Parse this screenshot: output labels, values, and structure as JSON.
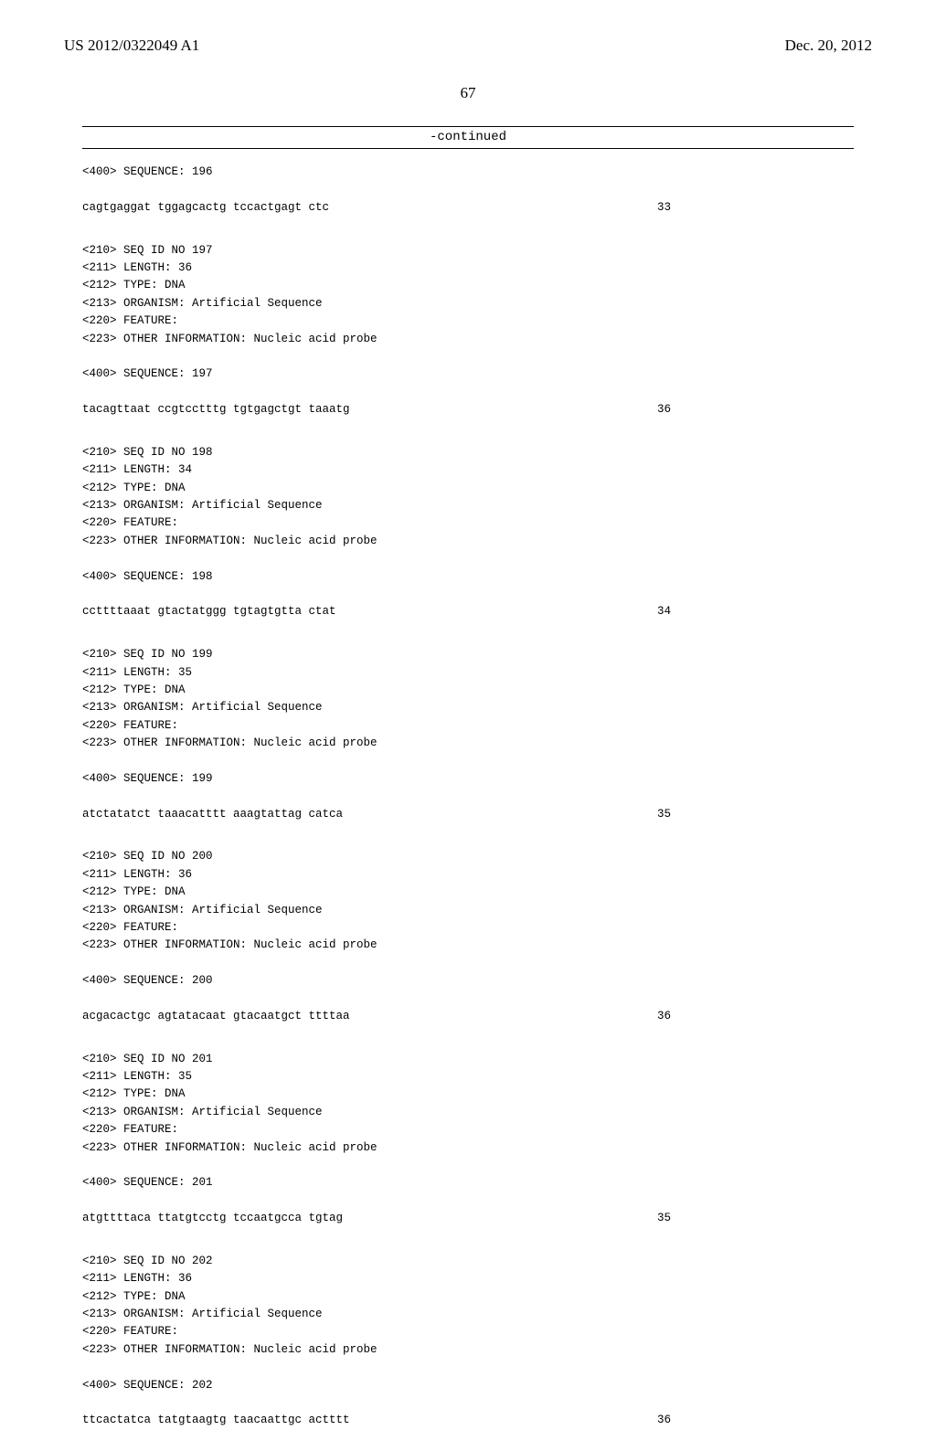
{
  "header": {
    "left": "US 2012/0322049 A1",
    "right": "Dec. 20, 2012"
  },
  "page_number": "67",
  "continued_label": "-continued",
  "entries": [
    {
      "pre_lines": [
        "<400> SEQUENCE: 196"
      ],
      "seq": "cagtgaggat tggagcactg tccactgagt ctc",
      "len": "33"
    },
    {
      "pre_lines": [
        "<210> SEQ ID NO 197",
        "<211> LENGTH: 36",
        "<212> TYPE: DNA",
        "<213> ORGANISM: Artificial Sequence",
        "<220> FEATURE:",
        "<223> OTHER INFORMATION: Nucleic acid probe",
        "",
        "<400> SEQUENCE: 197"
      ],
      "seq": "tacagttaat ccgtcctttg tgtgagctgt taaatg",
      "len": "36"
    },
    {
      "pre_lines": [
        "<210> SEQ ID NO 198",
        "<211> LENGTH: 34",
        "<212> TYPE: DNA",
        "<213> ORGANISM: Artificial Sequence",
        "<220> FEATURE:",
        "<223> OTHER INFORMATION: Nucleic acid probe",
        "",
        "<400> SEQUENCE: 198"
      ],
      "seq": "ccttttaaat gtactatggg tgtagtgtta ctat",
      "len": "34"
    },
    {
      "pre_lines": [
        "<210> SEQ ID NO 199",
        "<211> LENGTH: 35",
        "<212> TYPE: DNA",
        "<213> ORGANISM: Artificial Sequence",
        "<220> FEATURE:",
        "<223> OTHER INFORMATION: Nucleic acid probe",
        "",
        "<400> SEQUENCE: 199"
      ],
      "seq": "atctatatct taaacatttt aaagtattag catca",
      "len": "35"
    },
    {
      "pre_lines": [
        "<210> SEQ ID NO 200",
        "<211> LENGTH: 36",
        "<212> TYPE: DNA",
        "<213> ORGANISM: Artificial Sequence",
        "<220> FEATURE:",
        "<223> OTHER INFORMATION: Nucleic acid probe",
        "",
        "<400> SEQUENCE: 200"
      ],
      "seq": "acgacactgc agtatacaat gtacaatgct ttttaa",
      "len": "36"
    },
    {
      "pre_lines": [
        "<210> SEQ ID NO 201",
        "<211> LENGTH: 35",
        "<212> TYPE: DNA",
        "<213> ORGANISM: Artificial Sequence",
        "<220> FEATURE:",
        "<223> OTHER INFORMATION: Nucleic acid probe",
        "",
        "<400> SEQUENCE: 201"
      ],
      "seq": "atgttttaca ttatgtcctg tccaatgcca tgtag",
      "len": "35"
    },
    {
      "pre_lines": [
        "<210> SEQ ID NO 202",
        "<211> LENGTH: 36",
        "<212> TYPE: DNA",
        "<213> ORGANISM: Artificial Sequence",
        "<220> FEATURE:",
        "<223> OTHER INFORMATION: Nucleic acid probe",
        "",
        "<400> SEQUENCE: 202"
      ],
      "seq": "ttcactatca tatgtaagtg taacaattgc actttt",
      "len": "36"
    }
  ]
}
